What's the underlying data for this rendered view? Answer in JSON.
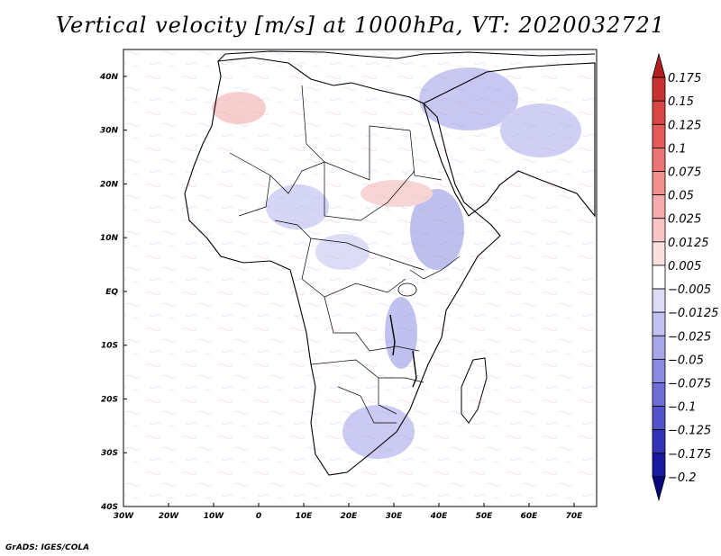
{
  "title": "Vertical velocity [m/s] at 1000hPa, VT: 2020032721",
  "credit": "GrADS: IGES/COLA",
  "map": {
    "lon_range": [
      -30,
      75
    ],
    "lat_range": [
      -40,
      45
    ],
    "lon_tick_values": [
      -30,
      -20,
      -10,
      0,
      10,
      20,
      30,
      40,
      50,
      60,
      70
    ],
    "lon_tick_labels": [
      "30W",
      "20W",
      "10W",
      "0",
      "10E",
      "20E",
      "30E",
      "40E",
      "50E",
      "60E",
      "70E"
    ],
    "lat_tick_values": [
      40,
      30,
      20,
      10,
      0,
      -10,
      -20,
      -30,
      -40
    ],
    "lat_tick_labels": [
      "40N",
      "30N",
      "20N",
      "10N",
      "EQ",
      "10S",
      "20S",
      "30S",
      "40S"
    ],
    "field": "vertical velocity",
    "positive_color_family": "red",
    "negative_color_family": "blue"
  },
  "colorbar": {
    "levels": [
      "0.175",
      "0.15",
      "0.125",
      "0.1",
      "0.075",
      "0.05",
      "0.025",
      "0.0125",
      "0.005",
      "-0.005",
      "-0.0125",
      "-0.025",
      "-0.05",
      "-0.075",
      "-0.1",
      "-0.125",
      "-0.175",
      "-0.2"
    ],
    "colors": [
      "#b41e1e",
      "#c83232",
      "#d84646",
      "#e45a5a",
      "#ec7474",
      "#f29090",
      "#f6acac",
      "#f9c6c6",
      "#fbe0e0",
      "#ffffff",
      "#dcdcf6",
      "#c2c2f0",
      "#a6a6e8",
      "#8a8ae0",
      "#6e6ed6",
      "#5252ca",
      "#3434b8",
      "#1a1aa0",
      "#08087c"
    ]
  }
}
